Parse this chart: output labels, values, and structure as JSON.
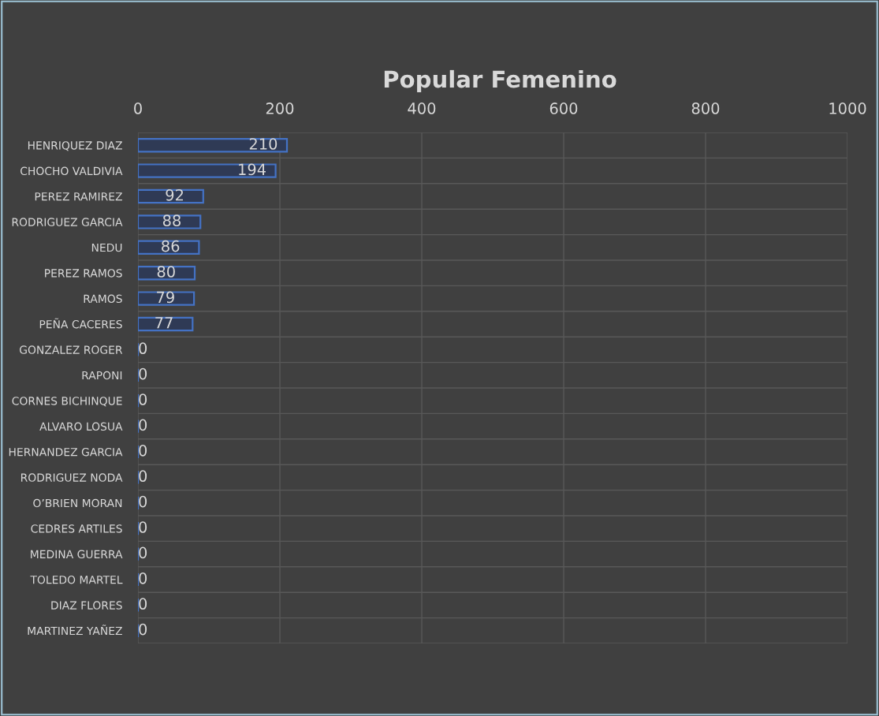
{
  "chart_data": {
    "type": "bar",
    "orientation": "horizontal",
    "title": "Popular Femenino",
    "categories": [
      "HENRIQUEZ DIAZ",
      "CHOCHO VALDIVIA",
      "PEREZ RAMIREZ",
      "RODRIGUEZ GARCIA",
      "NEDU",
      "PEREZ RAMOS",
      "RAMOS",
      "PEÑA CACERES",
      "GONZALEZ ROGER",
      "RAPONI",
      "CORNES BICHINQUE",
      "ALVARO LOSUA",
      "HERNANDEZ GARCIA",
      "RODRIGUEZ NODA",
      "O’BRIEN MORAN",
      "CEDRES ARTILES",
      "MEDINA GUERRA",
      "TOLEDO MARTEL",
      "DIAZ FLORES",
      "MARTINEZ YAÑEZ"
    ],
    "values": [
      210,
      194,
      92,
      88,
      86,
      80,
      79,
      77,
      0,
      0,
      0,
      0,
      0,
      0,
      0,
      0,
      0,
      0,
      0,
      0
    ],
    "color": "#4472c4",
    "xlim": [
      0,
      1000
    ],
    "xticks": [
      0,
      200,
      400,
      600,
      800,
      1000
    ],
    "grid": true,
    "data_labels": true
  }
}
